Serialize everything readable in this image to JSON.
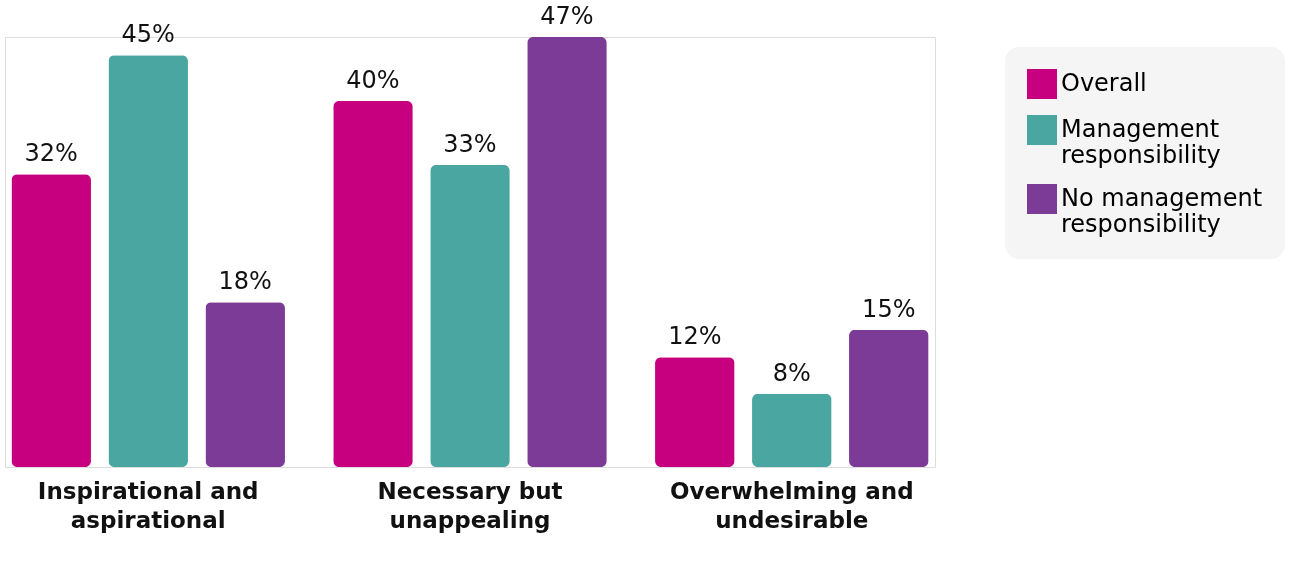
{
  "chart_data": {
    "type": "bar",
    "categories": [
      "Inspirational and aspirational",
      "Necessary but unappealing",
      "Overwhelming and undesirable"
    ],
    "series": [
      {
        "name": "Overall",
        "color": "#c6007e",
        "values": [
          32,
          40,
          12
        ],
        "value_labels": [
          "32%",
          "40%",
          "12%"
        ]
      },
      {
        "name": "Management responsibility",
        "color": "#4aa6a0",
        "values": [
          45,
          33,
          8
        ],
        "value_labels": [
          "45%",
          "33%",
          "8%"
        ]
      },
      {
        "name": "No management responsibility",
        "color": "#7b3b96",
        "values": [
          18,
          47,
          15
        ],
        "value_labels": [
          "18%",
          "47%",
          "15%"
        ]
      }
    ],
    "legend": "top right"
  }
}
